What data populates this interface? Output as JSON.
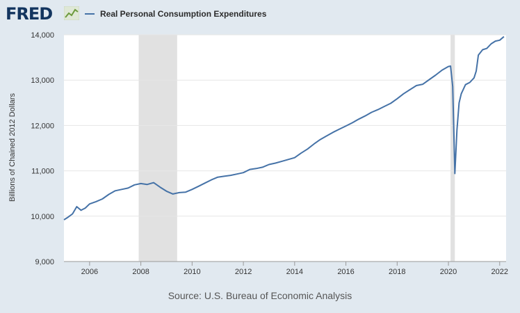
{
  "header": {
    "logo_text": "FRED",
    "logo_icon": "trend-line-icon",
    "legend_label": "Real Personal Consumption Expenditures"
  },
  "source_text": "Source: U.S. Bureau of Economic Analysis",
  "colors": {
    "background": "#e1e9f0",
    "plot_background": "#ffffff",
    "line": "#4572a7",
    "recession": "#e1e1e1",
    "grid": "#e6e6e6",
    "logo": "#13355f"
  },
  "chart_data": {
    "type": "line",
    "title": "",
    "xlabel": "",
    "ylabel": "Billions of Chained 2012 Dollars",
    "xlim": [
      "2005-01",
      "2022-04"
    ],
    "ylim": [
      9000,
      14000
    ],
    "yticks": [
      9000,
      10000,
      11000,
      12000,
      13000,
      14000
    ],
    "ytick_labels": [
      "9,000",
      "10,000",
      "11,000",
      "12,000",
      "13,000",
      "14,000"
    ],
    "xticks": [
      "2006",
      "2008",
      "2010",
      "2012",
      "2014",
      "2016",
      "2018",
      "2020",
      "2022"
    ],
    "grid": true,
    "legend_position": "top-left",
    "recessions": [
      {
        "start": "2007-12",
        "end": "2009-06"
      },
      {
        "start": "2020-02",
        "end": "2020-04"
      }
    ],
    "series": [
      {
        "name": "Real Personal Consumption Expenditures",
        "x": [
          "2005-01",
          "2005-03",
          "2005-05",
          "2005-07",
          "2005-09",
          "2005-11",
          "2006-01",
          "2006-04",
          "2006-07",
          "2006-10",
          "2007-01",
          "2007-04",
          "2007-07",
          "2007-10",
          "2008-01",
          "2008-04",
          "2008-07",
          "2008-10",
          "2009-01",
          "2009-04",
          "2009-07",
          "2009-10",
          "2010-01",
          "2010-04",
          "2010-07",
          "2010-10",
          "2011-01",
          "2011-04",
          "2011-07",
          "2011-10",
          "2012-01",
          "2012-04",
          "2012-07",
          "2012-10",
          "2013-01",
          "2013-04",
          "2013-07",
          "2013-10",
          "2014-01",
          "2014-04",
          "2014-07",
          "2014-10",
          "2015-01",
          "2015-04",
          "2015-07",
          "2015-10",
          "2016-01",
          "2016-04",
          "2016-07",
          "2016-10",
          "2017-01",
          "2017-04",
          "2017-07",
          "2017-10",
          "2018-01",
          "2018-04",
          "2018-07",
          "2018-10",
          "2019-01",
          "2019-04",
          "2019-07",
          "2019-10",
          "2020-01",
          "2020-02",
          "2020-03",
          "2020-04",
          "2020-05",
          "2020-06",
          "2020-07",
          "2020-09",
          "2020-11",
          "2021-01",
          "2021-02",
          "2021-03",
          "2021-05",
          "2021-07",
          "2021-09",
          "2021-11",
          "2022-01",
          "2022-02",
          "2022-03"
        ],
        "values": [
          9920,
          9980,
          10050,
          10210,
          10130,
          10180,
          10270,
          10320,
          10380,
          10480,
          10560,
          10590,
          10620,
          10690,
          10720,
          10700,
          10740,
          10640,
          10550,
          10490,
          10520,
          10530,
          10590,
          10660,
          10730,
          10800,
          10860,
          10880,
          10900,
          10930,
          10960,
          11030,
          11050,
          11080,
          11140,
          11170,
          11210,
          11250,
          11290,
          11390,
          11480,
          11590,
          11690,
          11770,
          11850,
          11920,
          11990,
          12060,
          12140,
          12210,
          12290,
          12350,
          12420,
          12490,
          12590,
          12700,
          12790,
          12880,
          12910,
          13010,
          13110,
          13220,
          13300,
          13310,
          12860,
          10940,
          11900,
          12500,
          12700,
          12900,
          12950,
          13050,
          13200,
          13550,
          13670,
          13700,
          13800,
          13860,
          13880,
          13920,
          13960
        ]
      }
    ]
  }
}
